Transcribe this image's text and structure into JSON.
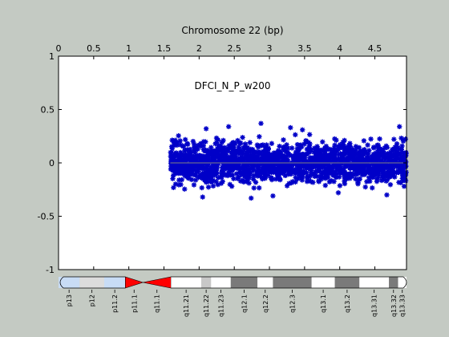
{
  "window": {
    "background": "#c4cac3"
  },
  "chart_data": {
    "type": "scatter",
    "title": "Chromosome 22 (bp)",
    "annotation": "DFCI_N_P_w200",
    "x_axis": {
      "position": "top",
      "range": [
        0,
        4.95
      ],
      "ticks": [
        0,
        0.5,
        1,
        1.5,
        2,
        2.5,
        3,
        3.5,
        4,
        4.5
      ],
      "tick_labels": [
        "0",
        "0.5",
        "1",
        "1.5",
        "2",
        "2.5",
        "3",
        "3.5",
        "4",
        "4.5"
      ]
    },
    "y_axis": {
      "range": [
        -1,
        1
      ],
      "ticks": [
        -1,
        -0.5,
        0,
        0.5,
        1
      ],
      "tick_labels": [
        "-1",
        "-0.5",
        "0",
        "0.5",
        "1"
      ]
    },
    "reference_line": {
      "y": 0,
      "color": "#7f7f7f"
    },
    "grid": false,
    "series": [
      {
        "marker": "star",
        "color": "#0000c8",
        "x_range": [
          1.59,
          4.95
        ],
        "y_range": [
          -0.33,
          0.37
        ],
        "distribution": "dense band around y = 0, most points within about ±0.2",
        "point_count_estimate": 2600,
        "notable_points": [
          {
            "x": 2.88,
            "y": 0.37
          },
          {
            "x": 2.42,
            "y": 0.34
          },
          {
            "x": 3.3,
            "y": 0.33
          },
          {
            "x": 4.85,
            "y": 0.34
          },
          {
            "x": 3.47,
            "y": 0.31
          },
          {
            "x": 2.1,
            "y": 0.32
          },
          {
            "x": 2.05,
            "y": -0.32
          },
          {
            "x": 2.74,
            "y": -0.33
          },
          {
            "x": 3.05,
            "y": -0.31
          },
          {
            "x": 4.67,
            "y": -0.3
          },
          {
            "x": 3.98,
            "y": -0.28
          }
        ]
      }
    ],
    "ideogram": {
      "chromosome": "22",
      "bands": [
        {
          "name": "p13",
          "start": 0.0,
          "end": 0.3,
          "color": "#c8dcf5",
          "label": "p13"
        },
        {
          "name": "p12",
          "start": 0.3,
          "end": 0.65,
          "color": "#dcdcdc",
          "label": "p12"
        },
        {
          "name": "p11.2",
          "start": 0.65,
          "end": 0.95,
          "color": "#c8dcf5",
          "label": "p11.2"
        },
        {
          "name": "p11.1",
          "start": 0.95,
          "end": 1.2,
          "color": "#ff0000",
          "label": "p11.1"
        },
        {
          "name": "q11.1",
          "start": 1.2,
          "end": 1.6,
          "color": "#ff0000",
          "label": "q11.1"
        },
        {
          "name": "q11.21",
          "start": 1.6,
          "end": 2.03,
          "color": "#ffffff",
          "label": "q11.21"
        },
        {
          "name": "q11.22",
          "start": 2.03,
          "end": 2.17,
          "color": "#c8c8c8",
          "label": "q11.22"
        },
        {
          "name": "q11.23",
          "start": 2.17,
          "end": 2.45,
          "color": "#ffffff",
          "label": "q11.23"
        },
        {
          "name": "q12.1",
          "start": 2.45,
          "end": 2.83,
          "color": "#7a7a7a",
          "label": "q12.1"
        },
        {
          "name": "q12.2",
          "start": 2.83,
          "end": 3.05,
          "color": "#ffffff",
          "label": "q12.2"
        },
        {
          "name": "q12.3",
          "start": 3.05,
          "end": 3.6,
          "color": "#7a7a7a",
          "label": "q12.3"
        },
        {
          "name": "q13.1",
          "start": 3.6,
          "end": 3.93,
          "color": "#ffffff",
          "label": "q13.1"
        },
        {
          "name": "q13.2",
          "start": 3.93,
          "end": 4.28,
          "color": "#7a7a7a",
          "label": "q13.2"
        },
        {
          "name": "q13.31",
          "start": 4.28,
          "end": 4.7,
          "color": "#ffffff",
          "label": "q13.31"
        },
        {
          "name": "q13.32",
          "start": 4.7,
          "end": 4.83,
          "color": "#7a7a7a",
          "label": "q13.32"
        },
        {
          "name": "q13.33",
          "start": 4.83,
          "end": 4.95,
          "color": "#ffffff",
          "label": "q13.33"
        }
      ]
    }
  }
}
